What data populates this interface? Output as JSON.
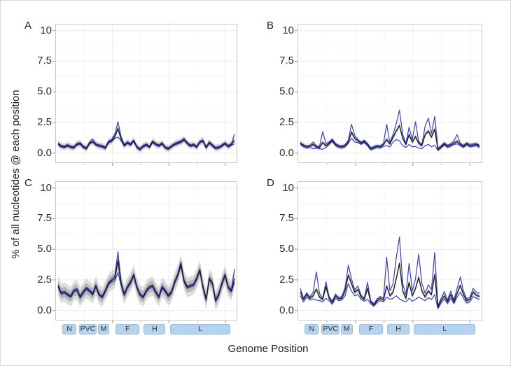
{
  "chart_data": {
    "type": "line",
    "title": "",
    "xlabel": "Genome Position",
    "ylabel": "% of all nucleotides @ each position",
    "ylim": [
      0,
      10
    ],
    "grid": true,
    "legend_position": "none",
    "y_ticks": {
      "labels": [
        "10",
        "7.5",
        "5.0",
        "2.5",
        "0.0"
      ],
      "values": [
        10,
        7.5,
        5,
        2.5,
        0
      ]
    },
    "x_ticks": {
      "labels": [],
      "major_fractions": [
        0.3125,
        0.625,
        0.9375
      ],
      "minor_fractions": [
        0.15625,
        0.46875,
        0.78125
      ]
    },
    "minor_y": [
      1.25,
      3.75,
      6.25,
      8.75
    ],
    "colors": {
      "mean_line": "#1f1f1f",
      "blue_line": "#3a3dc4",
      "band_outer": "rgba(145,145,145,0.30)",
      "band_inner": "rgba(110,110,110,0.36)",
      "grid_major": "#ececec",
      "grid_minor": "#f6f6f6",
      "panel_border": "#c9c9c9",
      "tick_mark": "#999999",
      "gene_box_fill": "#b5d3ec",
      "gene_box_text": "#333333"
    },
    "gene_track": [
      {
        "label": "N",
        "start": 0.04,
        "end": 0.115
      },
      {
        "label": "PVC",
        "start": 0.13,
        "end": 0.23
      },
      {
        "label": "M",
        "start": 0.235,
        "end": 0.3
      },
      {
        "label": "F",
        "start": 0.335,
        "end": 0.465
      },
      {
        "label": "H",
        "start": 0.49,
        "end": 0.61
      },
      {
        "label": "L",
        "start": 0.635,
        "end": 0.97
      }
    ],
    "panels": [
      {
        "label": "A",
        "band_outer": 0.3,
        "band_inner": 0.17,
        "series": [
          {
            "name": "mean",
            "color": "black",
            "values": [
              0.75,
              0.55,
              0.5,
              0.62,
              0.5,
              0.45,
              0.72,
              0.78,
              0.5,
              0.38,
              0.82,
              0.95,
              0.7,
              0.6,
              0.55,
              0.42,
              0.9,
              1.0,
              1.35,
              2.0,
              1.15,
              0.62,
              0.85,
              0.7,
              1.0,
              0.5,
              0.3,
              0.55,
              0.68,
              0.5,
              0.92,
              0.72,
              0.6,
              0.78,
              0.45,
              0.35,
              0.55,
              0.72,
              0.82,
              0.92,
              1.1,
              0.8,
              0.6,
              0.68,
              0.5,
              0.9,
              1.0,
              0.45,
              0.85,
              0.62,
              0.4,
              0.45,
              0.6,
              0.78,
              0.55,
              0.7,
              1.05
            ]
          },
          {
            "name": "upper",
            "color": "blue",
            "values": [
              0.82,
              0.62,
              0.57,
              0.69,
              0.57,
              0.52,
              0.79,
              0.85,
              0.57,
              0.45,
              0.89,
              1.15,
              0.77,
              0.67,
              0.62,
              0.49,
              0.97,
              1.1,
              1.55,
              2.55,
              1.35,
              0.69,
              0.92,
              0.77,
              1.07,
              0.57,
              0.37,
              0.62,
              0.75,
              0.57,
              1.0,
              0.79,
              0.67,
              0.85,
              0.52,
              0.42,
              0.62,
              0.79,
              0.89,
              1.0,
              1.2,
              0.87,
              0.67,
              0.75,
              0.57,
              0.97,
              1.07,
              0.52,
              0.92,
              0.69,
              0.47,
              0.52,
              0.67,
              0.85,
              0.62,
              0.77,
              1.55
            ]
          },
          {
            "name": "lower",
            "color": "blue",
            "values": [
              0.68,
              0.48,
              0.43,
              0.55,
              0.43,
              0.38,
              0.65,
              0.71,
              0.43,
              0.31,
              0.75,
              0.88,
              0.63,
              0.53,
              0.48,
              0.35,
              0.83,
              0.93,
              1.2,
              1.3,
              0.98,
              0.55,
              0.78,
              0.63,
              0.93,
              0.43,
              0.23,
              0.48,
              0.61,
              0.43,
              0.85,
              0.65,
              0.53,
              0.71,
              0.38,
              0.28,
              0.48,
              0.65,
              0.75,
              0.85,
              1.03,
              0.73,
              0.53,
              0.61,
              0.43,
              0.83,
              0.93,
              0.38,
              0.78,
              0.55,
              0.33,
              0.38,
              0.53,
              0.71,
              0.48,
              0.63,
              0.75
            ]
          }
        ]
      },
      {
        "label": "B",
        "band_outer": 0.22,
        "band_inner": 0.12,
        "series": [
          {
            "name": "mean",
            "color": "black",
            "values": [
              0.8,
              0.6,
              0.5,
              0.55,
              0.7,
              0.5,
              0.45,
              0.85,
              0.6,
              0.8,
              1.05,
              0.7,
              0.55,
              0.5,
              0.6,
              0.9,
              1.7,
              1.2,
              1.0,
              0.8,
              0.95,
              0.7,
              0.35,
              0.45,
              0.55,
              0.5,
              0.7,
              1.1,
              0.75,
              1.3,
              1.8,
              2.25,
              1.2,
              0.7,
              1.5,
              0.9,
              1.35,
              0.8,
              0.6,
              1.5,
              1.8,
              1.3,
              1.95,
              0.3,
              0.5,
              0.75,
              0.55,
              0.65,
              0.8,
              0.95,
              0.7,
              0.55,
              0.75,
              0.6,
              0.65,
              0.7,
              0.55
            ]
          },
          {
            "name": "upper",
            "color": "blue",
            "values": [
              0.88,
              0.68,
              0.58,
              0.63,
              0.9,
              0.58,
              0.53,
              1.75,
              0.78,
              0.9,
              1.15,
              0.78,
              0.63,
              0.58,
              0.68,
              1.05,
              2.35,
              1.45,
              1.1,
              0.88,
              1.05,
              0.78,
              0.43,
              0.53,
              0.63,
              0.58,
              0.8,
              2.35,
              0.85,
              1.55,
              2.4,
              3.5,
              1.5,
              0.8,
              2.1,
              1.1,
              2.55,
              0.95,
              0.7,
              2.2,
              2.85,
              1.6,
              3.0,
              0.4,
              0.6,
              0.85,
              0.65,
              0.75,
              1.0,
              1.5,
              0.8,
              0.63,
              0.85,
              0.7,
              0.75,
              0.8,
              0.63
            ]
          },
          {
            "name": "lower",
            "color": "blue",
            "values": [
              0.7,
              0.5,
              0.4,
              0.45,
              0.35,
              0.4,
              0.35,
              0.3,
              0.45,
              0.7,
              0.95,
              0.6,
              0.45,
              0.4,
              0.5,
              0.8,
              1.2,
              0.9,
              0.85,
              0.7,
              0.85,
              0.6,
              0.25,
              0.35,
              0.45,
              0.4,
              0.55,
              0.6,
              0.5,
              0.9,
              1.1,
              1.0,
              0.6,
              0.45,
              0.7,
              0.5,
              0.55,
              0.4,
              0.35,
              0.6,
              0.7,
              0.5,
              0.65,
              0.2,
              0.4,
              0.65,
              0.45,
              0.55,
              0.7,
              0.75,
              0.6,
              0.45,
              0.65,
              0.5,
              0.55,
              0.6,
              0.45
            ]
          }
        ]
      },
      {
        "label": "C",
        "band_outer": 0.8,
        "band_inner": 0.45,
        "series": [
          {
            "name": "mean",
            "color": "black",
            "values": [
              2.0,
              1.4,
              1.5,
              1.3,
              1.15,
              1.6,
              1.7,
              1.1,
              1.5,
              1.8,
              1.6,
              1.35,
              2.0,
              1.3,
              1.1,
              1.6,
              2.2,
              2.45,
              2.6,
              4.05,
              2.2,
              1.3,
              1.9,
              2.3,
              2.9,
              1.9,
              1.3,
              1.1,
              1.6,
              1.9,
              2.0,
              1.5,
              1.1,
              1.9,
              1.6,
              1.2,
              1.5,
              2.3,
              2.9,
              3.8,
              2.4,
              1.9,
              2.0,
              2.1,
              2.6,
              3.3,
              1.9,
              0.9,
              2.6,
              2.2,
              0.8,
              1.3,
              2.2,
              2.9,
              1.9,
              1.6,
              2.6
            ]
          },
          {
            "name": "upper",
            "color": "blue",
            "values": [
              2.1,
              1.5,
              1.6,
              1.4,
              1.25,
              1.7,
              1.8,
              1.2,
              1.6,
              1.9,
              1.7,
              1.45,
              2.1,
              1.4,
              1.2,
              1.7,
              2.3,
              2.55,
              2.8,
              4.8,
              2.35,
              1.4,
              2.0,
              2.4,
              3.0,
              2.0,
              1.4,
              1.2,
              1.7,
              2.0,
              2.1,
              1.6,
              1.2,
              2.0,
              1.7,
              1.3,
              1.6,
              2.4,
              3.0,
              3.95,
              2.5,
              2.0,
              2.1,
              2.2,
              2.7,
              3.4,
              2.0,
              1.0,
              2.7,
              2.3,
              0.9,
              1.4,
              2.3,
              3.0,
              2.0,
              1.7,
              3.4
            ]
          },
          {
            "name": "lower",
            "color": "blue",
            "values": [
              1.9,
              1.3,
              1.4,
              1.2,
              1.05,
              1.5,
              1.6,
              1.0,
              1.4,
              1.7,
              1.5,
              1.25,
              1.9,
              1.2,
              1.0,
              1.5,
              2.1,
              2.35,
              2.4,
              3.1,
              2.05,
              1.2,
              1.8,
              2.2,
              2.8,
              1.8,
              1.2,
              1.0,
              1.5,
              1.8,
              1.9,
              1.4,
              1.0,
              1.8,
              1.5,
              1.1,
              1.4,
              2.2,
              2.8,
              3.6,
              2.3,
              1.8,
              1.9,
              2.0,
              2.5,
              3.2,
              1.8,
              0.8,
              2.5,
              2.1,
              0.7,
              1.2,
              2.1,
              2.8,
              1.8,
              1.5,
              2.3
            ]
          }
        ]
      },
      {
        "label": "D",
        "band_outer": 0.22,
        "band_inner": 0.12,
        "series": [
          {
            "name": "mean",
            "color": "black",
            "values": [
              1.5,
              0.9,
              1.3,
              1.0,
              1.2,
              1.75,
              1.1,
              0.9,
              1.95,
              1.0,
              0.65,
              1.2,
              0.95,
              1.0,
              1.6,
              2.9,
              2.2,
              1.5,
              1.7,
              1.1,
              0.9,
              1.8,
              0.7,
              0.45,
              0.8,
              1.0,
              0.85,
              2.0,
              1.2,
              1.5,
              2.6,
              3.85,
              1.6,
              1.0,
              2.3,
              1.2,
              1.8,
              2.7,
              1.6,
              1.1,
              1.6,
              1.3,
              2.95,
              0.25,
              0.8,
              1.2,
              0.7,
              1.3,
              0.7,
              1.4,
              2.05,
              1.3,
              0.8,
              0.9,
              1.5,
              1.25,
              1.15
            ]
          },
          {
            "name": "upper",
            "color": "blue",
            "values": [
              1.8,
              1.0,
              1.45,
              1.1,
              1.5,
              3.15,
              1.4,
              1.0,
              2.35,
              1.15,
              0.75,
              1.35,
              1.05,
              1.15,
              1.9,
              3.7,
              2.6,
              1.7,
              2.0,
              1.25,
              1.0,
              2.3,
              0.8,
              0.55,
              0.95,
              1.15,
              1.0,
              4.35,
              1.6,
              2.2,
              4.3,
              6.0,
              2.2,
              1.3,
              3.85,
              1.6,
              2.6,
              4.6,
              2.2,
              1.4,
              2.1,
              1.7,
              4.75,
              0.4,
              1.0,
              1.55,
              0.85,
              1.6,
              0.85,
              1.8,
              2.75,
              1.6,
              0.95,
              1.1,
              1.8,
              1.5,
              1.4
            ]
          },
          {
            "name": "lower",
            "color": "blue",
            "values": [
              1.2,
              0.7,
              1.1,
              0.85,
              0.95,
              0.85,
              0.8,
              0.7,
              1.0,
              0.8,
              0.5,
              1.0,
              0.8,
              0.85,
              1.2,
              2.2,
              1.6,
              1.2,
              1.3,
              0.9,
              0.75,
              0.9,
              0.55,
              0.35,
              0.65,
              0.8,
              0.7,
              1.1,
              0.9,
              1.0,
              1.2,
              0.95,
              0.8,
              0.7,
              1.0,
              0.75,
              0.9,
              1.1,
              0.95,
              0.8,
              1.05,
              0.9,
              1.3,
              0.15,
              0.6,
              0.95,
              0.55,
              1.0,
              0.55,
              1.1,
              1.5,
              1.0,
              0.6,
              0.7,
              1.15,
              1.0,
              0.9
            ]
          }
        ]
      }
    ]
  }
}
